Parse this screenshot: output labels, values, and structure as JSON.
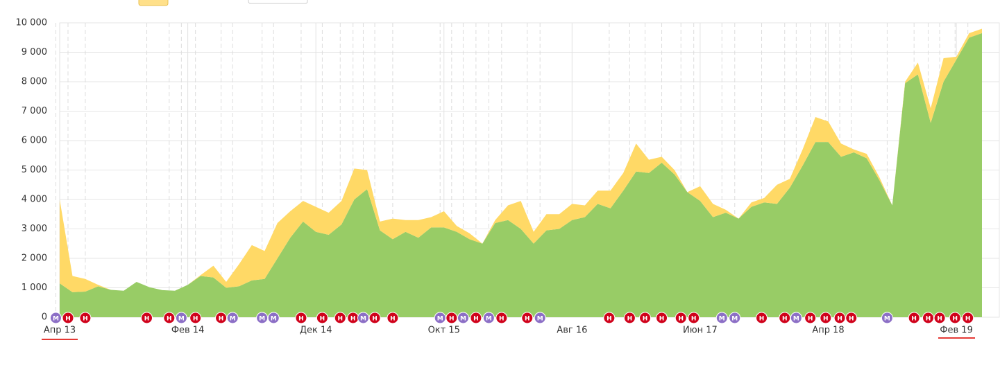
{
  "chart_data": {
    "type": "stacked-area",
    "categories": [
      "Апр 13",
      null,
      null,
      null,
      null,
      null,
      null,
      null,
      null,
      null,
      "Фев 14",
      null,
      null,
      null,
      null,
      null,
      null,
      null,
      null,
      null,
      "Дек 14",
      null,
      null,
      null,
      null,
      null,
      null,
      null,
      null,
      null,
      "Окт 15",
      null,
      null,
      null,
      null,
      null,
      null,
      null,
      null,
      null,
      "Авг 16",
      null,
      null,
      null,
      null,
      null,
      null,
      null,
      null,
      null,
      "Июн 17",
      null,
      null,
      null,
      null,
      null,
      null,
      null,
      null,
      null,
      "Апр 18",
      null,
      null,
      null,
      null,
      null,
      null,
      null,
      null,
      null,
      "Фев 19",
      null,
      null
    ],
    "series": [
      {
        "color": "#98cc66",
        "values": [
          1150,
          850,
          870,
          1050,
          930,
          900,
          1200,
          1020,
          920,
          900,
          1100,
          1400,
          1350,
          1000,
          1050,
          1250,
          1300,
          2000,
          2700,
          3250,
          2900,
          2800,
          3150,
          4000,
          4350,
          2950,
          2650,
          2900,
          2700,
          3050,
          3050,
          2900,
          2650,
          2500,
          3200,
          3300,
          3000,
          2500,
          2950,
          3000,
          3300,
          3400,
          3850,
          3700,
          4300,
          4950,
          4900,
          5250,
          4850,
          4250,
          3950,
          3400,
          3550,
          3350,
          3750,
          3900,
          3850,
          4400,
          5150,
          5950,
          5950,
          5450,
          5600,
          5400,
          4650,
          3800,
          7950,
          8250,
          6600,
          8000,
          8750,
          9500,
          9650
        ]
      },
      {
        "color": "#ffd966",
        "values": [
          2850,
          550,
          430,
          50,
          0,
          0,
          0,
          0,
          0,
          0,
          0,
          30,
          400,
          200,
          750,
          1200,
          950,
          1200,
          900,
          700,
          850,
          750,
          800,
          1050,
          650,
          300,
          700,
          400,
          600,
          350,
          550,
          200,
          200,
          0,
          100,
          500,
          950,
          400,
          550,
          500,
          550,
          400,
          450,
          600,
          600,
          950,
          450,
          200,
          150,
          0,
          500,
          450,
          100,
          0,
          150,
          150,
          650,
          300,
          550,
          850,
          700,
          450,
          100,
          150,
          100,
          0,
          50,
          400,
          500,
          800,
          100,
          150,
          150
        ]
      }
    ],
    "ylim": [
      0,
      10000
    ],
    "yticks": [
      0,
      {
        "value": 1000,
        "label": "1 000"
      },
      {
        "value": 2000,
        "label": "2 000"
      },
      {
        "value": 3000,
        "label": "3 000"
      },
      {
        "value": 4000,
        "label": "4 000"
      },
      {
        "value": 5000,
        "label": "5 000"
      },
      {
        "value": 6000,
        "label": "6 000"
      },
      {
        "value": 7000,
        "label": "7 000"
      },
      {
        "value": 8000,
        "label": "8 000"
      },
      {
        "value": 9000,
        "label": "9 000"
      },
      {
        "value": 10000,
        "label": "10 000"
      }
    ],
    "grid": true,
    "events": [
      {
        "x": -0.3,
        "label": "М"
      },
      {
        "x": 0.65,
        "label": "Н"
      },
      {
        "x": 2.0,
        "label": "Н"
      },
      {
        "x": 6.8,
        "label": "Н"
      },
      {
        "x": 8.55,
        "label": "Н"
      },
      {
        "x": 9.5,
        "label": "М"
      },
      {
        "x": 10.6,
        "label": "Н"
      },
      {
        "x": 12.6,
        "label": "Н"
      },
      {
        "x": 13.5,
        "label": "М"
      },
      {
        "x": 15.8,
        "label": "М"
      },
      {
        "x": 16.7,
        "label": "М"
      },
      {
        "x": 18.85,
        "label": "Н"
      },
      {
        "x": 20.5,
        "label": "Н"
      },
      {
        "x": 21.9,
        "label": "Н"
      },
      {
        "x": 22.9,
        "label": "Н"
      },
      {
        "x": 23.7,
        "label": "М"
      },
      {
        "x": 24.6,
        "label": "Н"
      },
      {
        "x": 26.0,
        "label": "Н"
      },
      {
        "x": 29.7,
        "label": "М"
      },
      {
        "x": 30.6,
        "label": "Н"
      },
      {
        "x": 31.5,
        "label": "М"
      },
      {
        "x": 32.5,
        "label": "Н"
      },
      {
        "x": 33.5,
        "label": "М"
      },
      {
        "x": 34.5,
        "label": "Н"
      },
      {
        "x": 36.5,
        "label": "Н"
      },
      {
        "x": 37.5,
        "label": "М"
      },
      {
        "x": 42.9,
        "label": "Н"
      },
      {
        "x": 44.5,
        "label": "Н"
      },
      {
        "x": 45.7,
        "label": "Н"
      },
      {
        "x": 47.0,
        "label": "Н"
      },
      {
        "x": 48.5,
        "label": "Н"
      },
      {
        "x": 49.5,
        "label": "Н"
      },
      {
        "x": 51.7,
        "label": "М"
      },
      {
        "x": 52.7,
        "label": "М"
      },
      {
        "x": 54.8,
        "label": "Н"
      },
      {
        "x": 56.6,
        "label": "Н"
      },
      {
        "x": 57.5,
        "label": "М"
      },
      {
        "x": 58.6,
        "label": "Н"
      },
      {
        "x": 59.8,
        "label": "Н"
      },
      {
        "x": 60.9,
        "label": "Н"
      },
      {
        "x": 61.8,
        "label": "Н"
      },
      {
        "x": 64.6,
        "label": "М"
      },
      {
        "x": 66.7,
        "label": "Н"
      },
      {
        "x": 67.8,
        "label": "Н"
      },
      {
        "x": 68.7,
        "label": "Н"
      },
      {
        "x": 69.9,
        "label": "Н"
      },
      {
        "x": 70.9,
        "label": "Н"
      }
    ]
  }
}
